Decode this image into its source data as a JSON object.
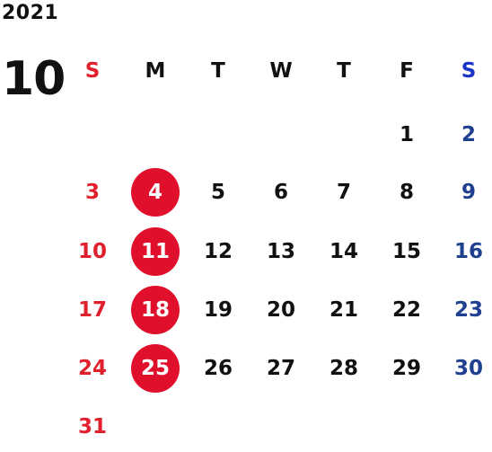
{
  "year": "2021",
  "month": "10",
  "weekdays": [
    "S",
    "M",
    "T",
    "W",
    "T",
    "F",
    "S"
  ],
  "colors": {
    "sunday": "#e0202c",
    "saturday": "#1f3f8f",
    "saturday_header": "#1a34c8",
    "holiday_circle": "#e0102c",
    "text": "#111111"
  },
  "first_weekday_index": 5,
  "days_in_month": 31,
  "highlighted_days": [
    4,
    11,
    18,
    25
  ]
}
